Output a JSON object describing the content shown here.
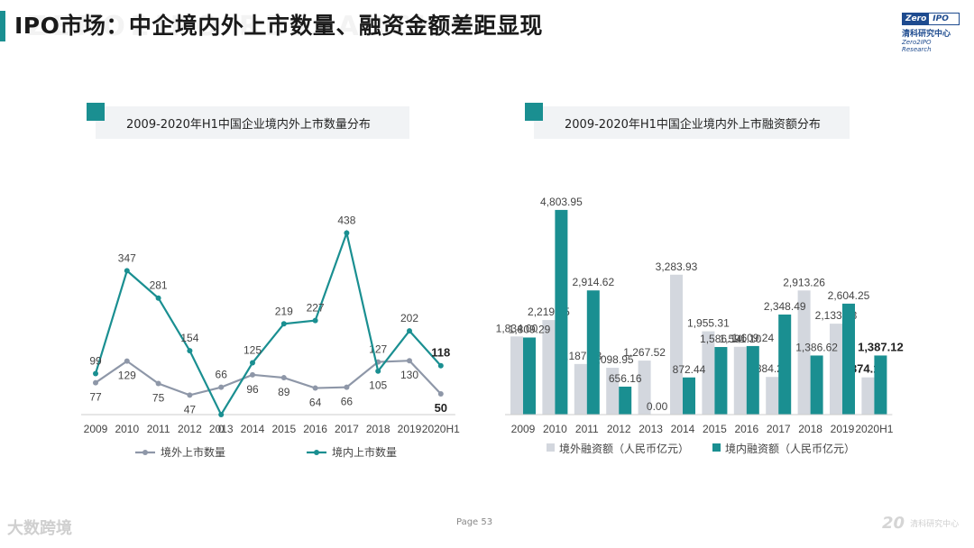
{
  "page": {
    "title": "IPO市场：中企境内外上市数量、融资金额差距显现",
    "page_label": "Page 53",
    "accent": "#1a8f91",
    "watermark": "ZERO2IPO RESEARCH"
  },
  "logo": {
    "top_a": "Zero",
    "top_b": "IPO",
    "cn": "清科研究中心",
    "en": "Zero2IPO Research"
  },
  "footer": {
    "left_logo": "大数跨境",
    "right_num": "20",
    "right_cn": "清科研究中心"
  },
  "chart_data": [
    {
      "type": "line",
      "title": "2009-2020年H1中国企业境内外上市数量分布",
      "categories": [
        "2009",
        "2010",
        "2011",
        "2012",
        "2013",
        "2014",
        "2015",
        "2016",
        "2017",
        "2018",
        "2019",
        "2020H1"
      ],
      "series": [
        {
          "name": "境外上市数量",
          "color": "#8e97a8",
          "values": [
            77,
            129,
            75,
            47,
            66,
            96,
            89,
            64,
            66,
            127,
            130,
            50
          ],
          "labels": [
            "77",
            "129",
            "75",
            "47",
            "66",
            "96",
            "89",
            "64",
            "66",
            "127",
            "130",
            "50"
          ]
        },
        {
          "name": "境内上市数量",
          "color": "#1a8f91",
          "values": [
            99,
            347,
            281,
            154,
            0,
            125,
            219,
            227,
            438,
            105,
            202,
            118
          ],
          "labels": [
            "99",
            "347",
            "281",
            "154",
            "0",
            "125",
            "219",
            "227",
            "438",
            "105",
            "202",
            "118"
          ]
        }
      ],
      "ylim": [
        0,
        500
      ]
    },
    {
      "type": "bar",
      "title": "2009-2020年H1中国企业境内外上市融资额分布",
      "categories": [
        "2009",
        "2010",
        "2011",
        "2012",
        "2013",
        "2014",
        "2015",
        "2016",
        "2017",
        "2018",
        "2019",
        "2020H1"
      ],
      "series": [
        {
          "name": "境外融资额（人民币亿元）",
          "color": "#d3d7de",
          "values": [
            1834.0,
            2219.65,
            1187.53,
            1098.95,
            1267.52,
            3283.93,
            1955.31,
            1591.1,
            884.26,
            2913.26,
            2133.83,
            874.11
          ],
          "labels": [
            "1,834.00",
            "2,219.65",
            "1,187.53",
            "1,098.95",
            "1,267.52",
            "3,283.93",
            "1,955.31",
            "1,591.10",
            "884.26",
            "2,913.26",
            "2,133.83",
            "874.11"
          ]
        },
        {
          "name": "境内融资额（人民币亿元）",
          "color": "#1a8f91",
          "values": [
            1809.29,
            4803.95,
            2914.62,
            656.16,
            0.0,
            872.44,
            1586.14,
            1609.24,
            2348.49,
            1386.62,
            2604.25,
            1387.12
          ],
          "labels": [
            "1,809.29",
            "4,803.95",
            "2,914.62",
            "656.16",
            "0.00",
            "872.44",
            "1,586.14",
            "1,609.24",
            "2,348.49",
            "1,386.62",
            "2,604.25",
            "1,387.12"
          ]
        }
      ],
      "ylim": [
        0,
        5500
      ]
    }
  ]
}
